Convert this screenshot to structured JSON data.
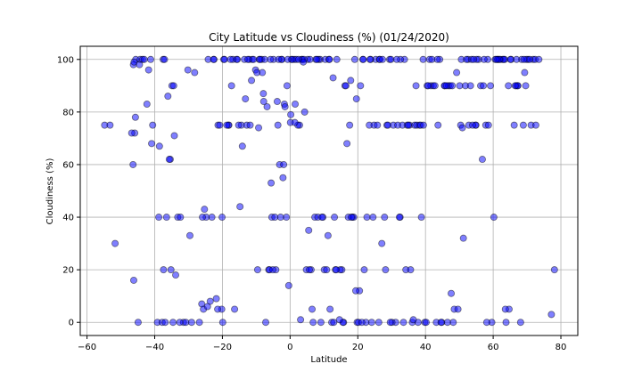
{
  "chart_data": {
    "type": "scatter",
    "title": "City Latitude vs Cloudiness (%) (01/24/2020)",
    "xlabel": "Latitude",
    "ylabel": "Cloudiness (%)",
    "xlim": [
      -62,
      85
    ],
    "ylim": [
      -5,
      105
    ],
    "xticks": [
      -60,
      -40,
      -20,
      0,
      20,
      40,
      60,
      80
    ],
    "yticks": [
      0,
      20,
      40,
      60,
      80,
      100
    ],
    "grid": true,
    "marker_color": "#0000ff",
    "marker_edge": "#000000",
    "x": [
      -54.8,
      -53.2,
      -51.7,
      -46.4,
      -46.2,
      -45.9,
      -45.6,
      -44.3,
      -43.6,
      -42.3,
      -41.8,
      -40.9,
      -39.2,
      -38.8,
      -37.5,
      -36.1,
      -35.4,
      -34.9,
      -34.6,
      -33.2,
      -30.2,
      -29.6,
      -26.8,
      -25.3,
      -24.2,
      -22.5,
      -21.3,
      -19.6,
      -18.1,
      -17.3,
      -15.8,
      -14.4,
      -13.2,
      -12.1,
      -11.4,
      -10.2,
      -9.1,
      -8.4,
      -7.5,
      -6.8,
      -5.4,
      -4.9,
      -3.6,
      -2.6,
      -1.7,
      -0.9,
      0.4,
      1.2,
      2.8,
      3.4,
      4.3,
      5.2,
      6.8,
      7.3,
      8.9,
      10.4,
      11.2,
      12.7,
      13.8,
      15.3,
      16.2,
      17.9,
      18.4,
      19.6,
      20.8,
      21.5,
      22.7,
      23.4,
      25.3,
      26.4,
      27.9,
      28.6,
      29.4,
      30.5,
      31.8,
      32.5,
      33.2,
      34.6,
      35.3,
      36.8,
      37.4,
      38.2,
      39.3,
      40.5,
      41.6,
      42.3,
      43.7,
      44.2,
      45.6,
      46.8,
      47.3,
      48.5,
      49.2,
      50.4,
      51.8,
      52.6,
      53.3,
      54.9,
      55.7,
      56.3,
      57.8,
      58.4,
      59.2,
      60.6,
      61.3,
      62.8,
      63.4,
      64.5,
      65.3,
      66.8,
      67.2,
      68.4,
      69.6,
      70.3,
      71.8,
      72.4,
      73.5,
      77.2,
      78.1,
      -46.3,
      -45.7,
      -41.2,
      -37.8,
      -36.5,
      -35.2,
      -22.6,
      -20.8,
      -19.4,
      -18.2,
      -15.6,
      -12.8,
      -9.6,
      -7.2,
      -5.8,
      -4.2,
      -2.4,
      -1.1,
      0.6,
      2.3,
      4.8,
      6.2,
      8.4,
      10.1,
      12.3,
      14.8,
      17.2,
      19.8,
      21.6,
      24.1,
      26.5,
      28.9,
      31.2,
      33.8,
      36.1,
      38.6,
      40.8,
      43.2,
      45.7,
      48.2,
      50.6,
      52.1,
      54.8,
      57.3,
      59.6,
      62.1,
      64.7,
      67.3,
      69.8,
      71.2,
      -38.6,
      -34.2,
      -33.8,
      -31.5,
      -28.2,
      -24.8,
      -23.6,
      -20.2,
      -16.4,
      -13.5,
      -11.2,
      -8.2,
      -6.3,
      -3.8,
      -2.1,
      -0.4,
      1.8,
      3.6,
      5.7,
      8.2,
      9.7,
      11.8,
      13.4,
      16.5,
      18.8,
      20.2,
      22.4,
      24.8,
      27.3,
      30.1,
      32.6,
      34.9,
      37.8,
      39.4,
      41.2,
      44.8,
      46.2,
      49.6,
      52.8,
      55.1,
      58.6,
      61.4,
      63.8,
      66.2,
      68.9,
      70.8,
      -46.8,
      -44.9,
      -43.1,
      -40.6,
      -36.9,
      -30.8,
      -26.1,
      -21.4,
      -18.7,
      -16.9,
      -14.1,
      -10.8,
      -8.9,
      -6.1,
      -4.5,
      -3.1,
      -1.5,
      0.2,
      2.5,
      4.1,
      6.5,
      9.1,
      11.5,
      13.1,
      15.8,
      18.1,
      20.5,
      23.8,
      26.2,
      29.8,
      33.5,
      36.4,
      39.8,
      42.8,
      46.5,
      50.1,
      53.6,
      56.8,
      60.2,
      63.1,
      66.5,
      69.3,
      -37.1,
      -32.4,
      -25.6,
      -23.1,
      -19.9,
      -15.2,
      -12.5,
      -9.8,
      -7.9,
      -5.1,
      -2.8,
      -0.7,
      1.5,
      3.9,
      5.5,
      7.6,
      9.4,
      11.6,
      13.6,
      15.6,
      17.6,
      19.4,
      21.2,
      23.6,
      25.8,
      28.2,
      31.5,
      34.2,
      37.2,
      40.2,
      43.5,
      47.6,
      51.2,
      54.2,
      58.1,
      61.8,
      65.1,
      68.1,
      72.6,
      -46.1,
      -44.5,
      -37.4,
      -35.7,
      -34.4,
      -32.6,
      -29.1,
      -25.9,
      -24.4,
      -21.8,
      -20.1,
      -17.6,
      -14.8,
      -11.8,
      -9.3,
      -7.8,
      -5.6,
      -3.4,
      -1.9,
      0.1,
      1.4,
      3.1,
      5.9,
      7.9,
      10.8,
      12.9,
      14.6,
      16.8,
      19.1,
      21.9,
      24.5,
      27.1,
      29.6,
      32.3,
      35.6,
      38.8,
      41.9,
      44.6,
      47.9,
      50.9,
      53.9,
      57.1,
      60.9,
      63.6,
      66.9,
      69.1
    ],
    "y": [
      75,
      75,
      30,
      60,
      16,
      72,
      100,
      100,
      100,
      83,
      96,
      68,
      0,
      40,
      100,
      86,
      62,
      90,
      0,
      40,
      96,
      33,
      0,
      43,
      100,
      100,
      75,
      100,
      75,
      90,
      100,
      75,
      85,
      100,
      92,
      96,
      100,
      100,
      100,
      82,
      40,
      100,
      75,
      100,
      83,
      90,
      100,
      100,
      75,
      100,
      80,
      100,
      0,
      40,
      100,
      100,
      33,
      93,
      100,
      20,
      90,
      92,
      40,
      85,
      90,
      100,
      40,
      75,
      100,
      100,
      40,
      75,
      100,
      75,
      75,
      40,
      75,
      75,
      75,
      75,
      75,
      75,
      100,
      90,
      90,
      90,
      75,
      100,
      90,
      90,
      90,
      5,
      95,
      75,
      90,
      100,
      90,
      75,
      100,
      90,
      75,
      100,
      90,
      100,
      100,
      100,
      100,
      90,
      100,
      90,
      90,
      100,
      90,
      100,
      100,
      100,
      100,
      3,
      20,
      98,
      78,
      100,
      0,
      40,
      20,
      100,
      75,
      100,
      75,
      100,
      75,
      20,
      0,
      100,
      20,
      100,
      40,
      100,
      75,
      20,
      20,
      100,
      20,
      0,
      20,
      40,
      0,
      100,
      0,
      100,
      75,
      0,
      100,
      0,
      75,
      90,
      0,
      90,
      0,
      100,
      100,
      75,
      100,
      0,
      100,
      5,
      90,
      100,
      75,
      67,
      71,
      18,
      0,
      95,
      40,
      8,
      5,
      5,
      100,
      100,
      95,
      20,
      84,
      55,
      14,
      100,
      100,
      20,
      40,
      40,
      5,
      20,
      90,
      40,
      0,
      0,
      75,
      100,
      0,
      100,
      75,
      0,
      75,
      100,
      0,
      90,
      5,
      75,
      100,
      75,
      100,
      0,
      75,
      75,
      100,
      72,
      0,
      100,
      75,
      0,
      0,
      7,
      5,
      75,
      100,
      67,
      100,
      100,
      20,
      40,
      60,
      82,
      79,
      100,
      100,
      5,
      0,
      100,
      40,
      0,
      40,
      12,
      100,
      0,
      100,
      0,
      1,
      0,
      90,
      0,
      90,
      100,
      62,
      40,
      100,
      90,
      95,
      100,
      40,
      5,
      40,
      0,
      75,
      100,
      95,
      87,
      20,
      40,
      100,
      83,
      99,
      35,
      100,
      40,
      100,
      20,
      0,
      75,
      12,
      0,
      100,
      75,
      20,
      100,
      20,
      90,
      0,
      100,
      11,
      32,
      100,
      0,
      100,
      100,
      0,
      75,
      99,
      98,
      20,
      62,
      90,
      0,
      0,
      40,
      6,
      9,
      40,
      100,
      44,
      75,
      74,
      84,
      53,
      100,
      60,
      76,
      76,
      1,
      100,
      100,
      20,
      0,
      1,
      68,
      100,
      20,
      40,
      30,
      0,
      40,
      20,
      40,
      100,
      0,
      90,
      74,
      75,
      90,
      100,
      5,
      100,
      100
    ]
  }
}
